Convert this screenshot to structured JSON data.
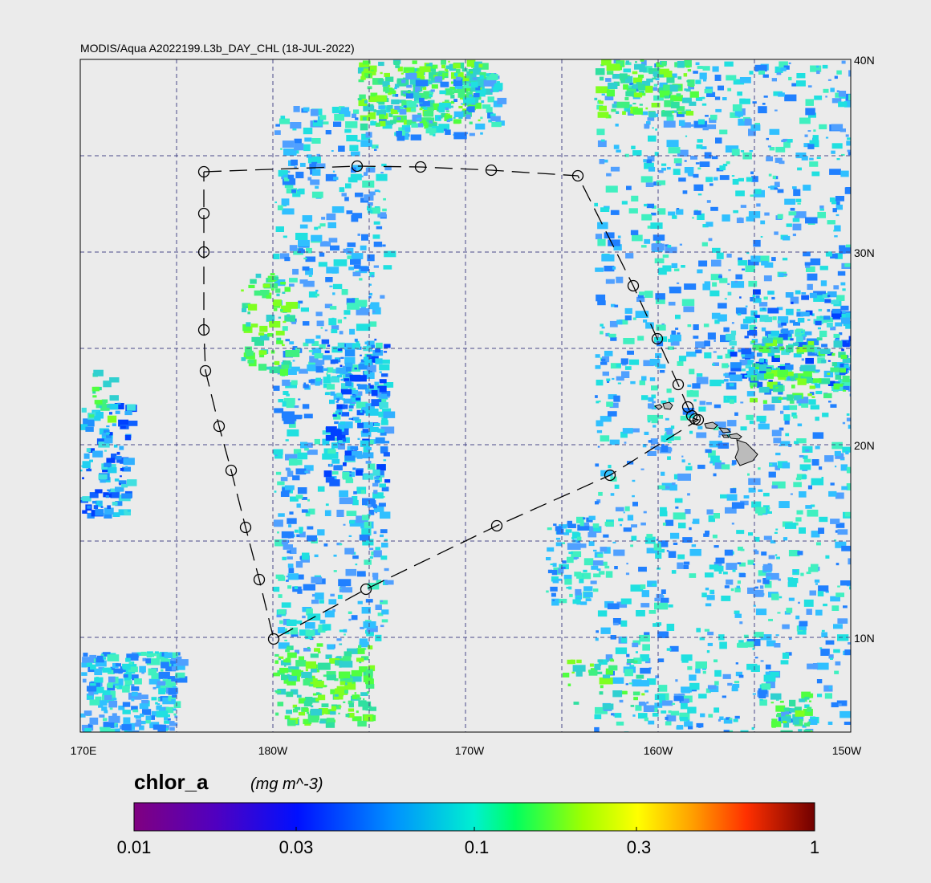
{
  "title": "MODIS/Aqua A2022199.L3b_DAY_CHL (18-JUL-2022)",
  "lat_labels": [
    "40N",
    "30N",
    "20N",
    "10N"
  ],
  "lon_labels": [
    "170E",
    "180W",
    "170W",
    "160W",
    "150W"
  ],
  "colorbar": {
    "variable": "chlor_a",
    "units": "(mg m^-3)",
    "labels": [
      "0.01",
      "0.03",
      "0.1",
      "0.3",
      "1"
    ]
  }
}
